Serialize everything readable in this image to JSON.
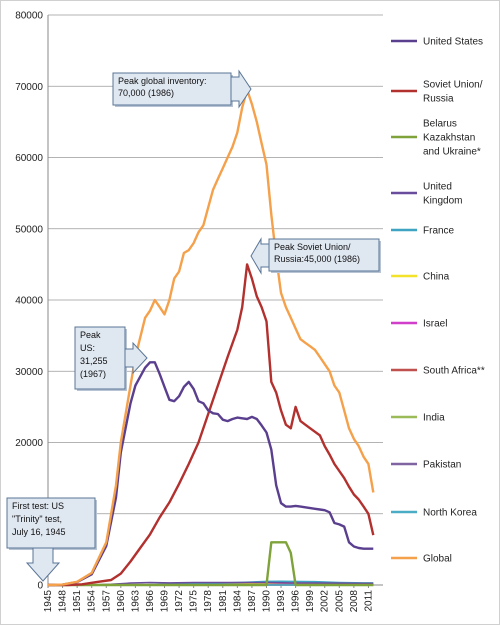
{
  "chart_data": {
    "type": "line",
    "ylim": [
      0,
      80000
    ],
    "yticks": [
      0,
      10000,
      20000,
      30000,
      40000,
      50000,
      60000,
      70000,
      80000
    ],
    "ytick_labels": [
      "0",
      "10000",
      "20000",
      "30000",
      "40000",
      "50000",
      "60000",
      "70000",
      "80000"
    ],
    "xlim": [
      1945,
      2014
    ],
    "xticks": [
      1945,
      1948,
      1951,
      1954,
      1957,
      1960,
      1963,
      1966,
      1969,
      1972,
      1975,
      1978,
      1981,
      1984,
      1987,
      1990,
      1993,
      1996,
      1999,
      2002,
      2005,
      2008,
      2011
    ],
    "xtick_labels": [
      "1945",
      "1948",
      "1951",
      "1954",
      "1957",
      "1960",
      "1963",
      "1966",
      "1969",
      "1972",
      "1975",
      "1978",
      "1981",
      "1984",
      "1987",
      "1990",
      "1993",
      "1996",
      "1999",
      "2002",
      "2005",
      "2008",
      "2011"
    ],
    "grid": "horizontal",
    "legend_position": "right",
    "series": [
      {
        "name": "United States",
        "color": "#5b3f8f",
        "points": [
          [
            1945,
            0
          ],
          [
            1948,
            50
          ],
          [
            1951,
            400
          ],
          [
            1954,
            1500
          ],
          [
            1957,
            5500
          ],
          [
            1959,
            12300
          ],
          [
            1960,
            18600
          ],
          [
            1962,
            25500
          ],
          [
            1963,
            28000
          ],
          [
            1965,
            30500
          ],
          [
            1966,
            31255
          ],
          [
            1967,
            31255
          ],
          [
            1968,
            29600
          ],
          [
            1969,
            27800
          ],
          [
            1970,
            26000
          ],
          [
            1971,
            25800
          ],
          [
            1972,
            26500
          ],
          [
            1973,
            27800
          ],
          [
            1974,
            28500
          ],
          [
            1975,
            27500
          ],
          [
            1976,
            25800
          ],
          [
            1977,
            25500
          ],
          [
            1978,
            24500
          ],
          [
            1979,
            24100
          ],
          [
            1980,
            24000
          ],
          [
            1981,
            23200
          ],
          [
            1982,
            23000
          ],
          [
            1983,
            23300
          ],
          [
            1984,
            23500
          ],
          [
            1985,
            23400
          ],
          [
            1986,
            23300
          ],
          [
            1987,
            23600
          ],
          [
            1988,
            23300
          ],
          [
            1989,
            22400
          ],
          [
            1990,
            21400
          ],
          [
            1991,
            19000
          ],
          [
            1992,
            14000
          ],
          [
            1993,
            11500
          ],
          [
            1994,
            11000
          ],
          [
            1995,
            11000
          ],
          [
            1996,
            11100
          ],
          [
            1997,
            11000
          ],
          [
            1998,
            10900
          ],
          [
            1999,
            10800
          ],
          [
            2000,
            10700
          ],
          [
            2001,
            10600
          ],
          [
            2002,
            10500
          ],
          [
            2003,
            10200
          ],
          [
            2004,
            8700
          ],
          [
            2005,
            8500
          ],
          [
            2006,
            8200
          ],
          [
            2007,
            6000
          ],
          [
            2008,
            5400
          ],
          [
            2009,
            5200
          ],
          [
            2010,
            5100
          ],
          [
            2011,
            5100
          ],
          [
            2012,
            5100
          ]
        ]
      },
      {
        "name": "Soviet Union/ Russia",
        "color": "#b2302e",
        "points": [
          [
            1945,
            0
          ],
          [
            1949,
            5
          ],
          [
            1952,
            100
          ],
          [
            1955,
            400
          ],
          [
            1958,
            700
          ],
          [
            1960,
            1600
          ],
          [
            1962,
            3300
          ],
          [
            1964,
            5200
          ],
          [
            1966,
            7100
          ],
          [
            1968,
            9500
          ],
          [
            1970,
            11600
          ],
          [
            1972,
            14200
          ],
          [
            1974,
            17000
          ],
          [
            1976,
            20000
          ],
          [
            1978,
            24000
          ],
          [
            1980,
            28000
          ],
          [
            1982,
            32000
          ],
          [
            1984,
            35800
          ],
          [
            1985,
            39000
          ],
          [
            1986,
            45000
          ],
          [
            1987,
            43000
          ],
          [
            1988,
            40500
          ],
          [
            1989,
            39000
          ],
          [
            1990,
            37000
          ],
          [
            1991,
            28500
          ],
          [
            1992,
            27000
          ],
          [
            1993,
            24500
          ],
          [
            1994,
            22500
          ],
          [
            1995,
            22000
          ],
          [
            1996,
            25000
          ],
          [
            1997,
            23000
          ],
          [
            1998,
            22500
          ],
          [
            1999,
            22000
          ],
          [
            2000,
            21500
          ],
          [
            2001,
            21000
          ],
          [
            2002,
            19500
          ],
          [
            2003,
            18300
          ],
          [
            2004,
            17000
          ],
          [
            2005,
            16000
          ],
          [
            2006,
            15000
          ],
          [
            2007,
            13800
          ],
          [
            2008,
            12700
          ],
          [
            2009,
            12000
          ],
          [
            2010,
            11000
          ],
          [
            2011,
            10000
          ],
          [
            2012,
            7000
          ]
        ]
      },
      {
        "name": "Belarus Kazakhstan and Ukraine*",
        "color": "#7fa33a",
        "points": [
          [
            1945,
            0
          ],
          [
            1990,
            0
          ],
          [
            1991,
            6000
          ],
          [
            1992,
            6000
          ],
          [
            1993,
            6000
          ],
          [
            1994,
            6000
          ],
          [
            1995,
            4500
          ],
          [
            1996,
            0
          ],
          [
            2012,
            0
          ]
        ]
      },
      {
        "name": "United Kingdom",
        "color": "#6a4c9c",
        "points": [
          [
            1945,
            0
          ],
          [
            1953,
            1
          ],
          [
            1958,
            100
          ],
          [
            1962,
            270
          ],
          [
            1966,
            350
          ],
          [
            1970,
            300
          ],
          [
            1975,
            350
          ],
          [
            1980,
            350
          ],
          [
            1985,
            350
          ],
          [
            1990,
            350
          ],
          [
            1995,
            300
          ],
          [
            2000,
            280
          ],
          [
            2005,
            250
          ],
          [
            2010,
            225
          ],
          [
            2012,
            225
          ]
        ]
      },
      {
        "name": "France",
        "color": "#3fa3c4",
        "points": [
          [
            1945,
            0
          ],
          [
            1964,
            4
          ],
          [
            1966,
            36
          ],
          [
            1970,
            100
          ],
          [
            1975,
            200
          ],
          [
            1980,
            250
          ],
          [
            1985,
            360
          ],
          [
            1990,
            505
          ],
          [
            1993,
            525
          ],
          [
            1995,
            500
          ],
          [
            2000,
            470
          ],
          [
            2005,
            350
          ],
          [
            2010,
            300
          ],
          [
            2012,
            300
          ]
        ]
      },
      {
        "name": "China",
        "color": "#f2e22a",
        "points": [
          [
            1945,
            0
          ],
          [
            1965,
            5
          ],
          [
            1970,
            75
          ],
          [
            1980,
            200
          ],
          [
            1990,
            230
          ],
          [
            2000,
            250
          ],
          [
            2012,
            250
          ]
        ]
      },
      {
        "name": "Israel",
        "color": "#d13ec9",
        "points": [
          [
            1945,
            0
          ],
          [
            1968,
            5
          ],
          [
            1980,
            40
          ],
          [
            1990,
            60
          ],
          [
            2000,
            80
          ],
          [
            2012,
            80
          ]
        ]
      },
      {
        "name": "South Africa**",
        "color": "#c0504d",
        "points": [
          [
            1945,
            0
          ],
          [
            1980,
            2
          ],
          [
            1989,
            6
          ],
          [
            1991,
            0
          ],
          [
            2012,
            0
          ]
        ]
      },
      {
        "name": "India",
        "color": "#9bbb59",
        "points": [
          [
            1945,
            0
          ],
          [
            1998,
            30
          ],
          [
            2005,
            60
          ],
          [
            2012,
            90
          ]
        ]
      },
      {
        "name": "Pakistan",
        "color": "#8064a2",
        "points": [
          [
            1945,
            0
          ],
          [
            1998,
            20
          ],
          [
            2005,
            50
          ],
          [
            2012,
            100
          ]
        ]
      },
      {
        "name": "North Korea",
        "color": "#4bacc6",
        "points": [
          [
            1945,
            0
          ],
          [
            2006,
            2
          ],
          [
            2012,
            10
          ]
        ]
      },
      {
        "name": "Global",
        "color": "#f5a04a",
        "points": [
          [
            1945,
            2
          ],
          [
            1948,
            50
          ],
          [
            1951,
            450
          ],
          [
            1954,
            1700
          ],
          [
            1957,
            6000
          ],
          [
            1959,
            14000
          ],
          [
            1960,
            20000
          ],
          [
            1962,
            28000
          ],
          [
            1963,
            32000
          ],
          [
            1965,
            37500
          ],
          [
            1966,
            38500
          ],
          [
            1967,
            40000
          ],
          [
            1968,
            39000
          ],
          [
            1969,
            38000
          ],
          [
            1970,
            40000
          ],
          [
            1971,
            43000
          ],
          [
            1972,
            44000
          ],
          [
            1973,
            46600
          ],
          [
            1974,
            47000
          ],
          [
            1975,
            48000
          ],
          [
            1976,
            49500
          ],
          [
            1977,
            50500
          ],
          [
            1978,
            53000
          ],
          [
            1979,
            55500
          ],
          [
            1980,
            57000
          ],
          [
            1981,
            58500
          ],
          [
            1982,
            60000
          ],
          [
            1983,
            61500
          ],
          [
            1984,
            63500
          ],
          [
            1985,
            67000
          ],
          [
            1986,
            69500
          ],
          [
            1987,
            67500
          ],
          [
            1988,
            65000
          ],
          [
            1989,
            62000
          ],
          [
            1990,
            59000
          ],
          [
            1991,
            52000
          ],
          [
            1992,
            46000
          ],
          [
            1993,
            41000
          ],
          [
            1994,
            39000
          ],
          [
            1995,
            37500
          ],
          [
            1996,
            36000
          ],
          [
            1997,
            34500
          ],
          [
            1998,
            34000
          ],
          [
            1999,
            33500
          ],
          [
            2000,
            33000
          ],
          [
            2001,
            32000
          ],
          [
            2002,
            31000
          ],
          [
            2003,
            30000
          ],
          [
            2004,
            28000
          ],
          [
            2005,
            27000
          ],
          [
            2006,
            24500
          ],
          [
            2007,
            22000
          ],
          [
            2008,
            20500
          ],
          [
            2009,
            19500
          ],
          [
            2010,
            18000
          ],
          [
            2011,
            17000
          ],
          [
            2012,
            13000
          ]
        ]
      }
    ],
    "annotations": [
      {
        "id": "peak-global",
        "lines": [
          "Peak global inventory:",
          "70,000 (1986)"
        ]
      },
      {
        "id": "peak-soviet",
        "lines": [
          "Peak  Soviet Union/",
          "Russia:45,000 (1986)"
        ]
      },
      {
        "id": "peak-us",
        "lines": [
          "Peak",
          "US:",
          "31,255",
          "(1967)"
        ]
      },
      {
        "id": "first-test",
        "lines": [
          "First test: US",
          "\"Trinity\" test,",
          "July 16, 1945"
        ]
      }
    ]
  }
}
